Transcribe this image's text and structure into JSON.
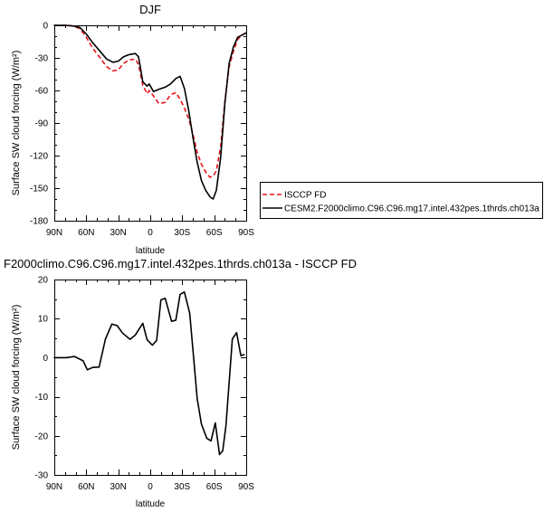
{
  "chart_data": [
    {
      "type": "line",
      "title": "DJF",
      "xlabel": "latitude",
      "ylabel": "Surface SW cloud forcing (W/m²)",
      "xlim": [
        90,
        -90
      ],
      "ylim": [
        -180,
        0
      ],
      "xticks": [
        90,
        60,
        30,
        0,
        -30,
        -60,
        -90
      ],
      "xtick_labels": [
        "90N",
        "60N",
        "30N",
        "0",
        "30S",
        "60S",
        "90S"
      ],
      "yticks": [
        0,
        -30,
        -60,
        -90,
        -120,
        -150,
        -180
      ],
      "ytick_labels": [
        "0",
        "-30",
        "-60",
        "-90",
        "-120",
        "-150",
        "-180"
      ],
      "grid": false,
      "legend": "right",
      "x": [
        90,
        80,
        73,
        66,
        60,
        54,
        47,
        41,
        35,
        30,
        25,
        20,
        14,
        11,
        7,
        3,
        1,
        -3,
        -8,
        -14,
        -19,
        -24,
        -28,
        -32,
        -36,
        -40,
        -44,
        -48,
        -52,
        -56,
        -59,
        -62,
        -66,
        -70,
        -74,
        -78,
        -82,
        -86,
        -90
      ],
      "series": [
        {
          "name": "ISCCP FD",
          "color": "#e8141c",
          "line_style": "dashed",
          "values": [
            0,
            0,
            -0.5,
            -3,
            -11,
            -21,
            -30,
            -38,
            -42,
            -41,
            -35,
            -32,
            -31,
            -36,
            -55,
            -63,
            -60,
            -65,
            -72,
            -71,
            -64,
            -62,
            -68,
            -76,
            -86,
            -100,
            -117,
            -128,
            -135,
            -140,
            -139,
            -134,
            -112,
            -70,
            -38,
            -24,
            -13,
            -9,
            -7
          ]
        },
        {
          "name": "CESM2.F2000climo.C96.C96.mg17.intel.432pes.1thrds.ch013a",
          "color": "#000000",
          "line_style": "solid",
          "values": [
            0,
            0,
            -0.5,
            -2,
            -8,
            -16,
            -24,
            -31,
            -34,
            -33,
            -29,
            -27,
            -26,
            -29,
            -52,
            -56,
            -54,
            -61,
            -59,
            -57,
            -54,
            -49,
            -47,
            -58,
            -78,
            -103,
            -126,
            -143,
            -152,
            -158,
            -160,
            -152,
            -122,
            -72,
            -35,
            -20,
            -11,
            -9,
            -7
          ]
        }
      ]
    },
    {
      "type": "line",
      "title": "F2000climo.C96.C96.mg17.intel.432pes.1thrds.ch013a - ISCCP FD",
      "xlabel": "latitude",
      "ylabel": "Surface SW cloud forcing (W/m²)",
      "xlim": [
        90,
        -90
      ],
      "ylim": [
        -30,
        20
      ],
      "xticks": [
        90,
        60,
        30,
        0,
        -30,
        -60,
        -90
      ],
      "xtick_labels": [
        "90N",
        "60N",
        "30N",
        "0",
        "30S",
        "60S",
        "90S"
      ],
      "yticks": [
        20,
        10,
        0,
        -10,
        -20,
        -30
      ],
      "ytick_labels": [
        "20",
        "10",
        "0",
        "-10",
        "-20",
        "-30"
      ],
      "grid": false,
      "x": [
        90,
        79,
        71,
        63,
        59,
        54,
        48,
        42,
        36,
        31,
        26,
        19,
        14,
        7,
        3,
        -2,
        -6,
        -10,
        -14,
        -20,
        -24,
        -28,
        -32,
        -37,
        -41,
        -44,
        -48,
        -53,
        -57,
        -61,
        -65,
        -68,
        -71,
        -77,
        -81,
        -85,
        -88
      ],
      "series": [
        {
          "color": "#000000",
          "line_style": "solid",
          "values": [
            0,
            0,
            0.3,
            -0.8,
            -3.1,
            -2.5,
            -2.4,
            4.8,
            8.6,
            8.2,
            6.3,
            4.7,
            5.8,
            8.8,
            4.6,
            3.2,
            4.4,
            14.8,
            15.2,
            9.3,
            9.6,
            16.2,
            16.8,
            11.4,
            -1,
            -10.4,
            -17,
            -20.6,
            -21.3,
            -16.7,
            -24.8,
            -23.8,
            -17.4,
            4.8,
            6.4,
            0.5,
            0.8
          ]
        }
      ]
    }
  ]
}
